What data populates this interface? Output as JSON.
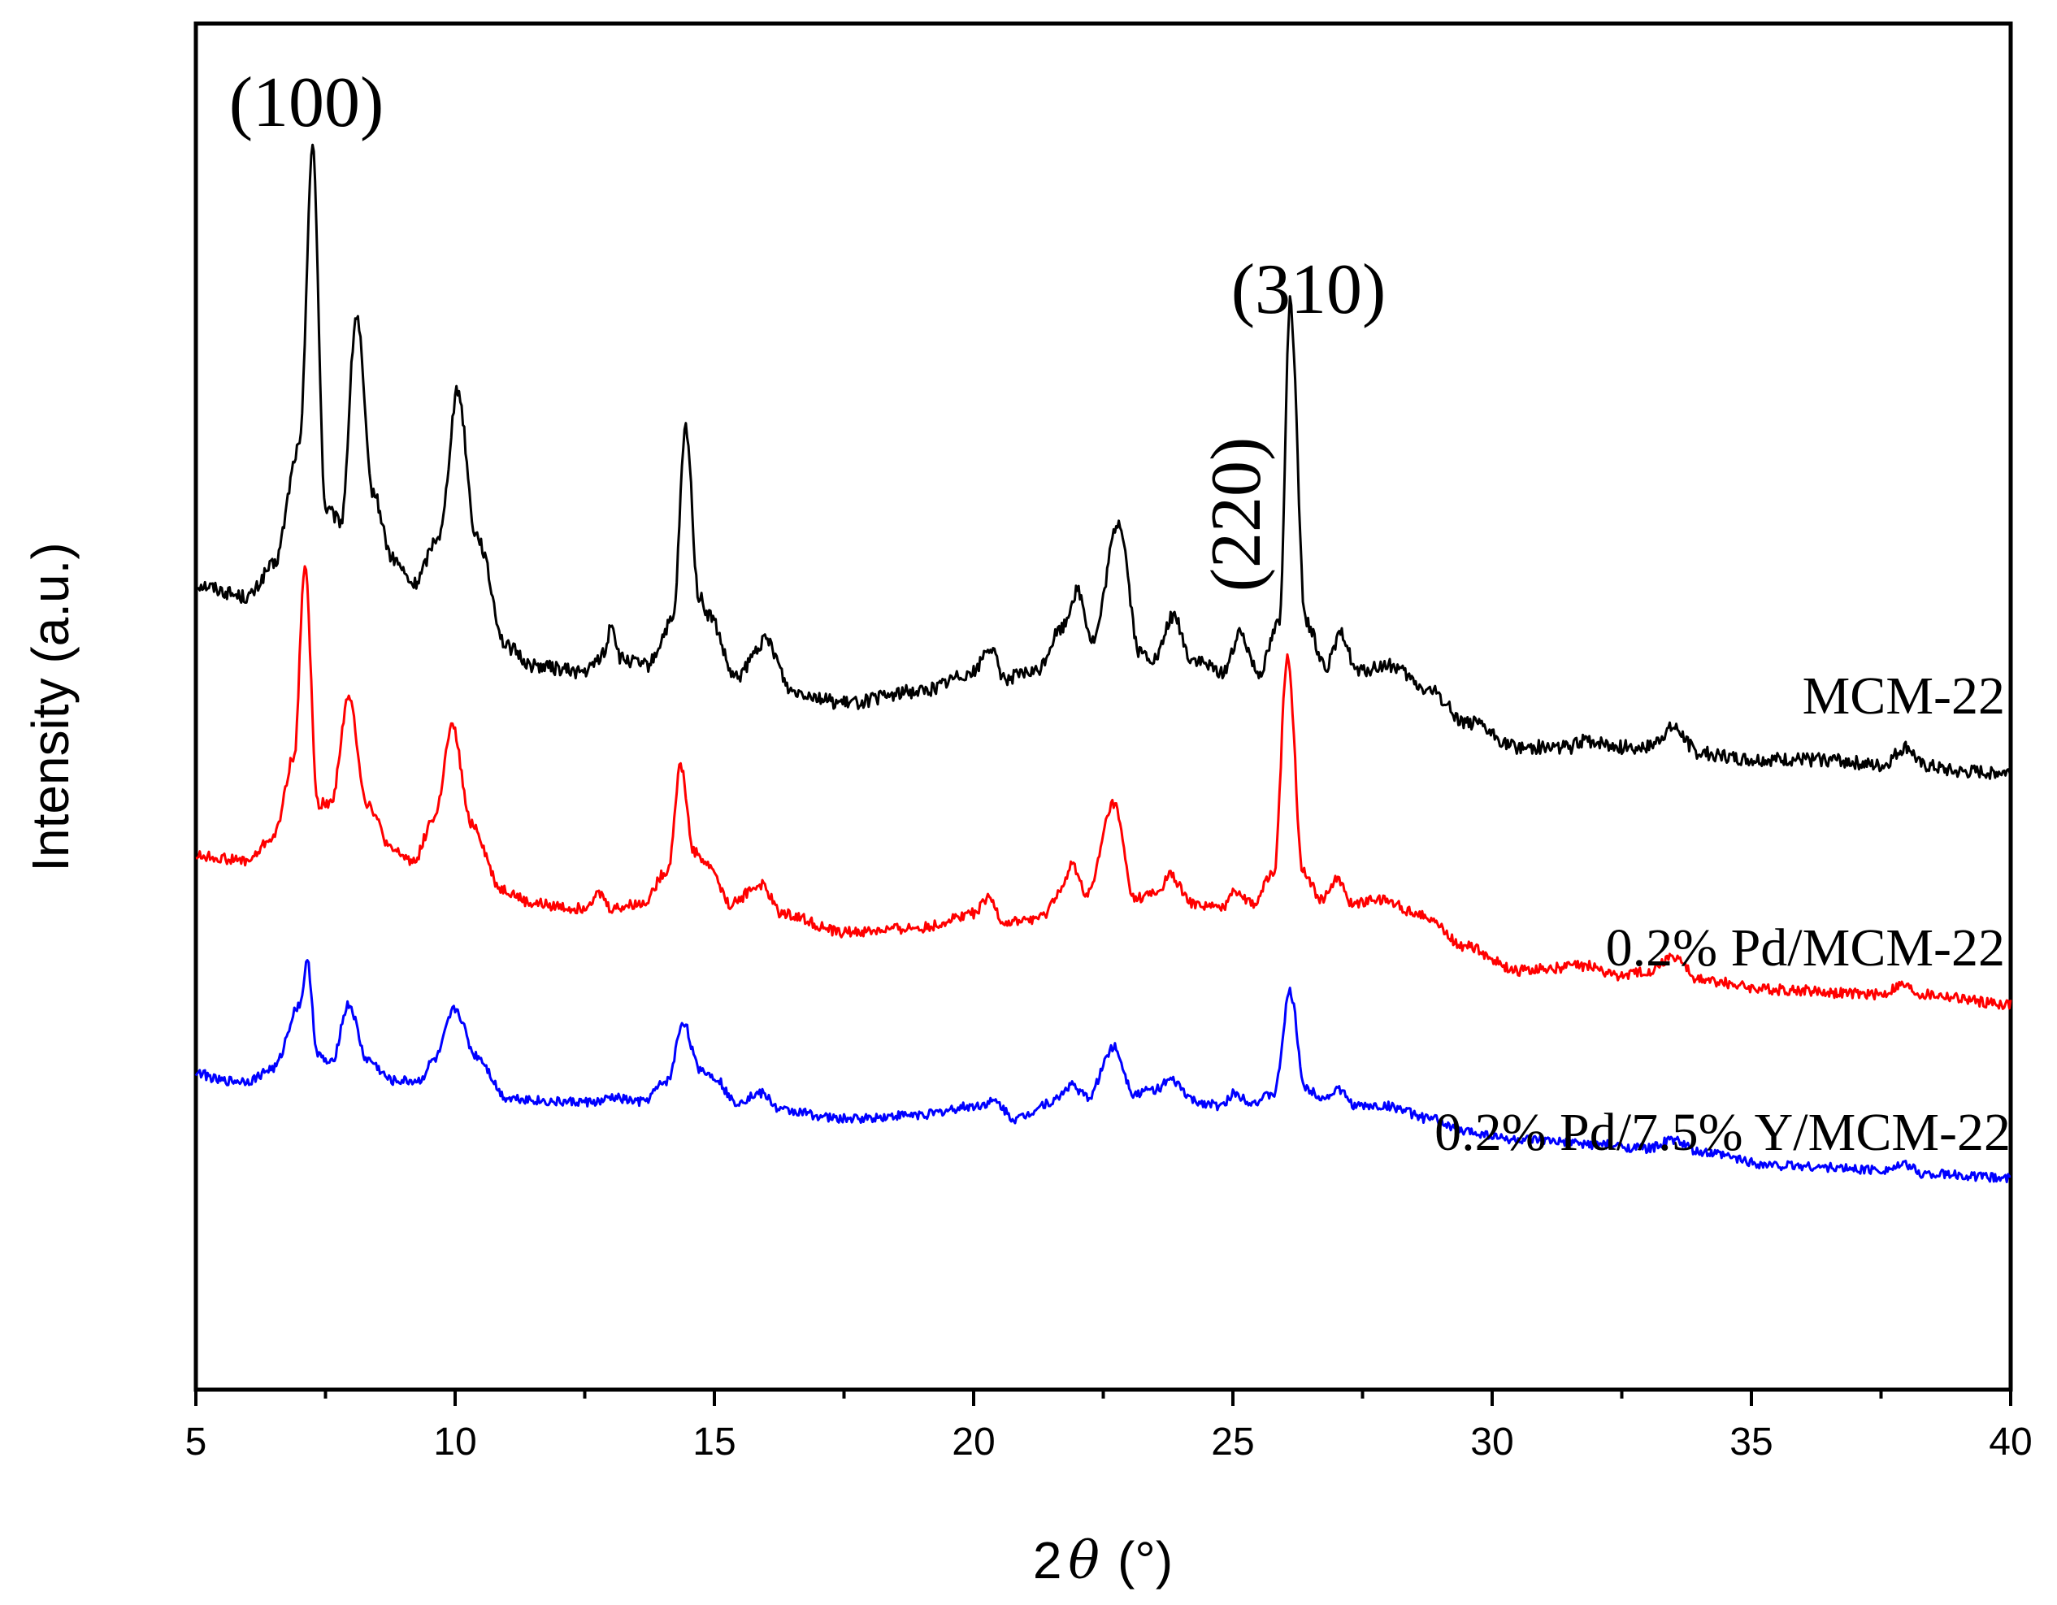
{
  "chart_data": {
    "type": "line",
    "title": "",
    "xlabel_prefix": "2",
    "xlabel_symbol": "θ",
    "xlabel_unit": "(°)",
    "ylabel": "Intensity (a.u.)",
    "xlim": [
      5,
      40
    ],
    "xticks": [
      "5",
      "10",
      "15",
      "20",
      "25",
      "30",
      "35",
      "40"
    ],
    "xtick_values": [
      5,
      10,
      15,
      20,
      25,
      30,
      35,
      40
    ],
    "yticks_visible": false,
    "grid": false,
    "peak_annotations": [
      {
        "label": "(100)",
        "x": 7.2,
        "series": "MCM-22",
        "orientation": "horizontal"
      },
      {
        "label": "(310)",
        "x": 26.1,
        "series": "MCM-22",
        "orientation": "horizontal"
      },
      {
        "label": "(220)",
        "x": 25.2,
        "series": "MCM-22",
        "orientation": "vertical"
      }
    ],
    "series": [
      {
        "name": "MCM-22",
        "color": "#000000",
        "baseline": 580,
        "scale": 1.0,
        "points": [
          [
            5,
            0.3
          ],
          [
            6,
            0.28
          ],
          [
            6.5,
            0.33
          ],
          [
            7.0,
            0.52
          ],
          [
            7.25,
            1.0
          ],
          [
            7.5,
            0.42
          ],
          [
            7.8,
            0.4
          ],
          [
            8.1,
            0.73
          ],
          [
            8.4,
            0.45
          ],
          [
            8.8,
            0.34
          ],
          [
            9.2,
            0.3
          ],
          [
            9.7,
            0.38
          ],
          [
            10.05,
            0.61
          ],
          [
            10.4,
            0.38
          ],
          [
            11.0,
            0.2
          ],
          [
            11.5,
            0.17
          ],
          [
            12.5,
            0.16
          ],
          [
            12.9,
            0.19
          ],
          [
            13.0,
            0.24
          ],
          [
            13.2,
            0.18
          ],
          [
            13.7,
            0.17
          ],
          [
            14.2,
            0.24
          ],
          [
            14.45,
            0.55
          ],
          [
            14.7,
            0.28
          ],
          [
            14.9,
            0.25
          ],
          [
            15.4,
            0.15
          ],
          [
            16.0,
            0.21
          ],
          [
            16.5,
            0.13
          ],
          [
            17.5,
            0.11
          ],
          [
            19.0,
            0.13
          ],
          [
            20.0,
            0.16
          ],
          [
            20.3,
            0.2
          ],
          [
            20.6,
            0.15
          ],
          [
            21.2,
            0.16
          ],
          [
            21.7,
            0.23
          ],
          [
            22.0,
            0.29
          ],
          [
            22.3,
            0.21
          ],
          [
            22.8,
            0.4
          ],
          [
            23.2,
            0.19
          ],
          [
            23.5,
            0.18
          ],
          [
            23.85,
            0.25
          ],
          [
            24.2,
            0.18
          ],
          [
            24.8,
            0.16
          ],
          [
            25.15,
            0.22
          ],
          [
            25.5,
            0.16
          ],
          [
            25.9,
            0.24
          ],
          [
            26.1,
            0.75
          ],
          [
            26.4,
            0.24
          ],
          [
            26.8,
            0.17
          ],
          [
            27.1,
            0.22
          ],
          [
            27.4,
            0.16
          ],
          [
            28.0,
            0.17
          ],
          [
            28.8,
            0.13
          ],
          [
            29.5,
            0.08
          ],
          [
            30.5,
            0.04
          ],
          [
            31.5,
            0.04
          ],
          [
            31.8,
            0.05
          ],
          [
            32.5,
            0.04
          ],
          [
            33.0,
            0.04
          ],
          [
            33.5,
            0.07
          ],
          [
            34.0,
            0.03
          ],
          [
            35.0,
            0.02
          ],
          [
            36.5,
            0.02
          ],
          [
            37.5,
            0.01
          ],
          [
            38.0,
            0.04
          ],
          [
            38.3,
            0.01
          ],
          [
            39.0,
            0.0
          ],
          [
            40.0,
            0.0
          ]
        ]
      },
      {
        "name": "0.2% Pd/MCM-22",
        "color": "#ff0000",
        "baseline": 580,
        "scale": 1.0,
        "points": [
          [
            5,
            0.19
          ],
          [
            6,
            0.18
          ],
          [
            6.5,
            0.23
          ],
          [
            6.9,
            0.4
          ],
          [
            7.1,
            0.8
          ],
          [
            7.35,
            0.3
          ],
          [
            7.6,
            0.3
          ],
          [
            7.95,
            0.52
          ],
          [
            8.3,
            0.3
          ],
          [
            8.8,
            0.2
          ],
          [
            9.2,
            0.18
          ],
          [
            9.6,
            0.27
          ],
          [
            9.95,
            0.46
          ],
          [
            10.3,
            0.26
          ],
          [
            10.9,
            0.12
          ],
          [
            11.5,
            0.09
          ],
          [
            12.4,
            0.08
          ],
          [
            12.8,
            0.11
          ],
          [
            13.0,
            0.08
          ],
          [
            13.6,
            0.09
          ],
          [
            14.1,
            0.16
          ],
          [
            14.35,
            0.38
          ],
          [
            14.6,
            0.2
          ],
          [
            14.9,
            0.17
          ],
          [
            15.3,
            0.09
          ],
          [
            15.9,
            0.13
          ],
          [
            16.3,
            0.07
          ],
          [
            17.5,
            0.03
          ],
          [
            19.0,
            0.04
          ],
          [
            20.0,
            0.07
          ],
          [
            20.3,
            0.1
          ],
          [
            20.6,
            0.05
          ],
          [
            21.3,
            0.06
          ],
          [
            21.7,
            0.12
          ],
          [
            21.9,
            0.17
          ],
          [
            22.2,
            0.11
          ],
          [
            22.7,
            0.3
          ],
          [
            23.1,
            0.1
          ],
          [
            23.5,
            0.11
          ],
          [
            23.8,
            0.15
          ],
          [
            24.2,
            0.09
          ],
          [
            24.8,
            0.08
          ],
          [
            25.0,
            0.12
          ],
          [
            25.4,
            0.09
          ],
          [
            25.8,
            0.16
          ],
          [
            26.05,
            0.61
          ],
          [
            26.35,
            0.16
          ],
          [
            26.7,
            0.1
          ],
          [
            27.0,
            0.14
          ],
          [
            27.3,
            0.09
          ],
          [
            27.8,
            0.1
          ],
          [
            28.6,
            0.07
          ],
          [
            29.5,
            0.0
          ],
          [
            30.5,
            -0.05
          ],
          [
            31.8,
            -0.04
          ],
          [
            32.5,
            -0.06
          ],
          [
            33.0,
            -0.05
          ],
          [
            33.5,
            -0.02
          ],
          [
            34.0,
            -0.07
          ],
          [
            35.5,
            -0.09
          ],
          [
            37.5,
            -0.1
          ],
          [
            37.9,
            -0.08
          ],
          [
            38.3,
            -0.1
          ],
          [
            40.0,
            -0.12
          ]
        ]
      },
      {
        "name": "0.2% Pd/7.5% Y/MCM-22",
        "color": "#0000ff",
        "baseline": 580,
        "scale": 1.0,
        "points": [
          [
            5,
            0.02
          ],
          [
            5.5,
            0.0
          ],
          [
            6,
            0.0
          ],
          [
            6.5,
            0.03
          ],
          [
            7.0,
            0.18
          ],
          [
            7.15,
            0.28
          ],
          [
            7.35,
            0.06
          ],
          [
            7.6,
            0.04
          ],
          [
            7.95,
            0.18
          ],
          [
            8.3,
            0.05
          ],
          [
            8.8,
            0.0
          ],
          [
            9.3,
            0.0
          ],
          [
            9.6,
            0.05
          ],
          [
            10.0,
            0.17
          ],
          [
            10.4,
            0.06
          ],
          [
            11.0,
            -0.04
          ],
          [
            12.0,
            -0.05
          ],
          [
            12.8,
            -0.05
          ],
          [
            13.0,
            -0.04
          ],
          [
            13.6,
            -0.05
          ],
          [
            14.1,
            0.0
          ],
          [
            14.4,
            0.14
          ],
          [
            14.7,
            0.03
          ],
          [
            15.0,
            0.01
          ],
          [
            15.4,
            -0.05
          ],
          [
            15.9,
            -0.03
          ],
          [
            16.3,
            -0.07
          ],
          [
            17.5,
            -0.09
          ],
          [
            19.0,
            -0.08
          ],
          [
            20.0,
            -0.06
          ],
          [
            20.4,
            -0.05
          ],
          [
            20.8,
            -0.09
          ],
          [
            21.5,
            -0.05
          ],
          [
            21.9,
            -0.01
          ],
          [
            22.2,
            -0.04
          ],
          [
            22.7,
            0.08
          ],
          [
            23.1,
            -0.03
          ],
          [
            23.5,
            -0.02
          ],
          [
            23.8,
            0.0
          ],
          [
            24.3,
            -0.05
          ],
          [
            24.8,
            -0.06
          ],
          [
            25.0,
            -0.03
          ],
          [
            25.4,
            -0.05
          ],
          [
            25.8,
            -0.03
          ],
          [
            26.1,
            0.21
          ],
          [
            26.4,
            -0.02
          ],
          [
            26.8,
            -0.04
          ],
          [
            27.0,
            -0.02
          ],
          [
            27.4,
            -0.06
          ],
          [
            28.0,
            -0.06
          ],
          [
            28.8,
            -0.09
          ],
          [
            29.5,
            -0.12
          ],
          [
            30.5,
            -0.14
          ],
          [
            32.0,
            -0.15
          ],
          [
            33.0,
            -0.16
          ],
          [
            33.5,
            -0.14
          ],
          [
            34.0,
            -0.17
          ],
          [
            35.5,
            -0.2
          ],
          [
            37.5,
            -0.21
          ],
          [
            38.0,
            -0.2
          ],
          [
            38.3,
            -0.22
          ],
          [
            40.0,
            -0.23
          ]
        ]
      }
    ]
  }
}
